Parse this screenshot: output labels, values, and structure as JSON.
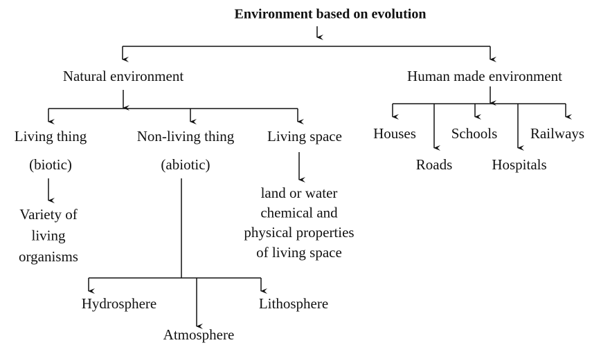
{
  "title": "Environment based on evolution",
  "nodes": [
    {
      "id": "natural",
      "lines": [
        "Natural environment"
      ]
    },
    {
      "id": "human",
      "lines": [
        "Human made environment"
      ]
    },
    {
      "id": "living",
      "lines": [
        "Living thing",
        "(biotic)"
      ]
    },
    {
      "id": "nonliving",
      "lines": [
        "Non-living thing",
        "(abiotic)"
      ]
    },
    {
      "id": "space",
      "lines": [
        "Living space"
      ]
    },
    {
      "id": "variety",
      "lines": [
        "Variety of",
        "living",
        "organisms"
      ]
    },
    {
      "id": "land",
      "lines": [
        "land or water",
        "chemical and",
        "physical properties",
        "of living space"
      ]
    },
    {
      "id": "hydro",
      "lines": [
        "Hydrosphere"
      ]
    },
    {
      "id": "litho",
      "lines": [
        "Lithosphere"
      ]
    },
    {
      "id": "atmo",
      "lines": [
        "Atmosphere"
      ]
    },
    {
      "id": "houses",
      "lines": [
        "Houses"
      ]
    },
    {
      "id": "roads",
      "lines": [
        "Roads"
      ]
    },
    {
      "id": "schools",
      "lines": [
        "Schools"
      ]
    },
    {
      "id": "hospitals",
      "lines": [
        "Hospitals"
      ]
    },
    {
      "id": "railways",
      "lines": [
        "Railways"
      ]
    }
  ]
}
